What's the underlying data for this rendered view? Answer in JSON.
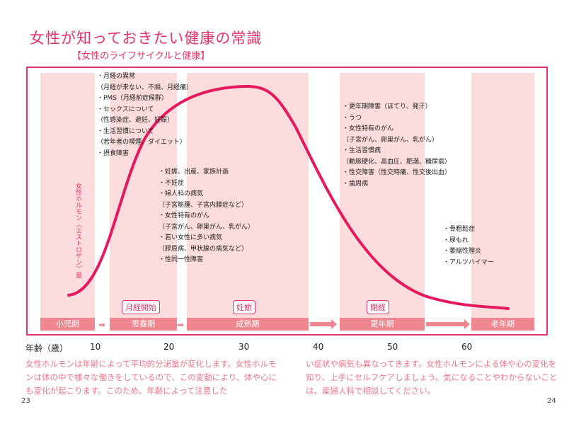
{
  "title": "女性が知っておきたい健康の常識",
  "subtitle": "【女性のライフサイクルと健康】",
  "y_label": "女性ホルモン（エストロゲン）量",
  "x_label": "年齢（歳）",
  "ages": [
    "10",
    "20",
    "30",
    "40",
    "50",
    "60"
  ],
  "stages": [
    "小児期",
    "思春期",
    "成熟期",
    "更年期",
    "老年期"
  ],
  "events": [
    "月経開始",
    "妊娠",
    "閉経"
  ],
  "lists": {
    "puberty": [
      "・月経の異常",
      "（月経が来ない、不順、月経痛）",
      "・PMS（月経前症候群）",
      "・セックスについて",
      "（性感染症、避妊、妊娠）",
      "・生活習慣について",
      "（若年者の喫煙、ダイエット）",
      "・摂食障害"
    ],
    "mature": [
      "・妊娠、出産、家族計画",
      "・不妊症",
      "・婦人科の病気",
      "（子宮筋腫、子宮内膜症など）",
      "・女性特有のがん",
      "（子宮がん、卵巣がん、乳がん）",
      "・若い女性に多い病気",
      "（膠原病、甲状腺の病気など）",
      "・性同一性障害"
    ],
    "menopause": [
      "・更年期障害（ほてり、発汗）",
      "・うつ",
      "・女性特有のがん",
      "（子宮がん、卵巣がん、乳がん）",
      "・生活習慣病",
      "（動脈硬化、高血圧、肥満、糖尿病）",
      "・性交障害（性交時痛、性交後出血）",
      "・歯周病"
    ],
    "senior": [
      "・骨粗鬆症",
      "・尿もれ",
      "・萎縮性膣炎",
      "・アルツハイマー"
    ]
  },
  "paragraph_left": "女性ホルモンは年齢によって平均的分泌量が変化します。女性ホルモンは体の中で様々な働きをしているので、この変動により、体や心にも変化が起こります。このため、年齢によって注意した",
  "paragraph_right": "い症状や病気も異なってきます。女性ホルモンによる体や心の変化を知り、上手にセルフケアしましょう。気になることやわからないことは、産婦人科で相談してください。",
  "page_left": "23",
  "page_right": "24",
  "colors": {
    "accent": "#e6336b",
    "band": "#fcdcdc",
    "stage": "#f08790",
    "text_pink": "#f0768a"
  }
}
